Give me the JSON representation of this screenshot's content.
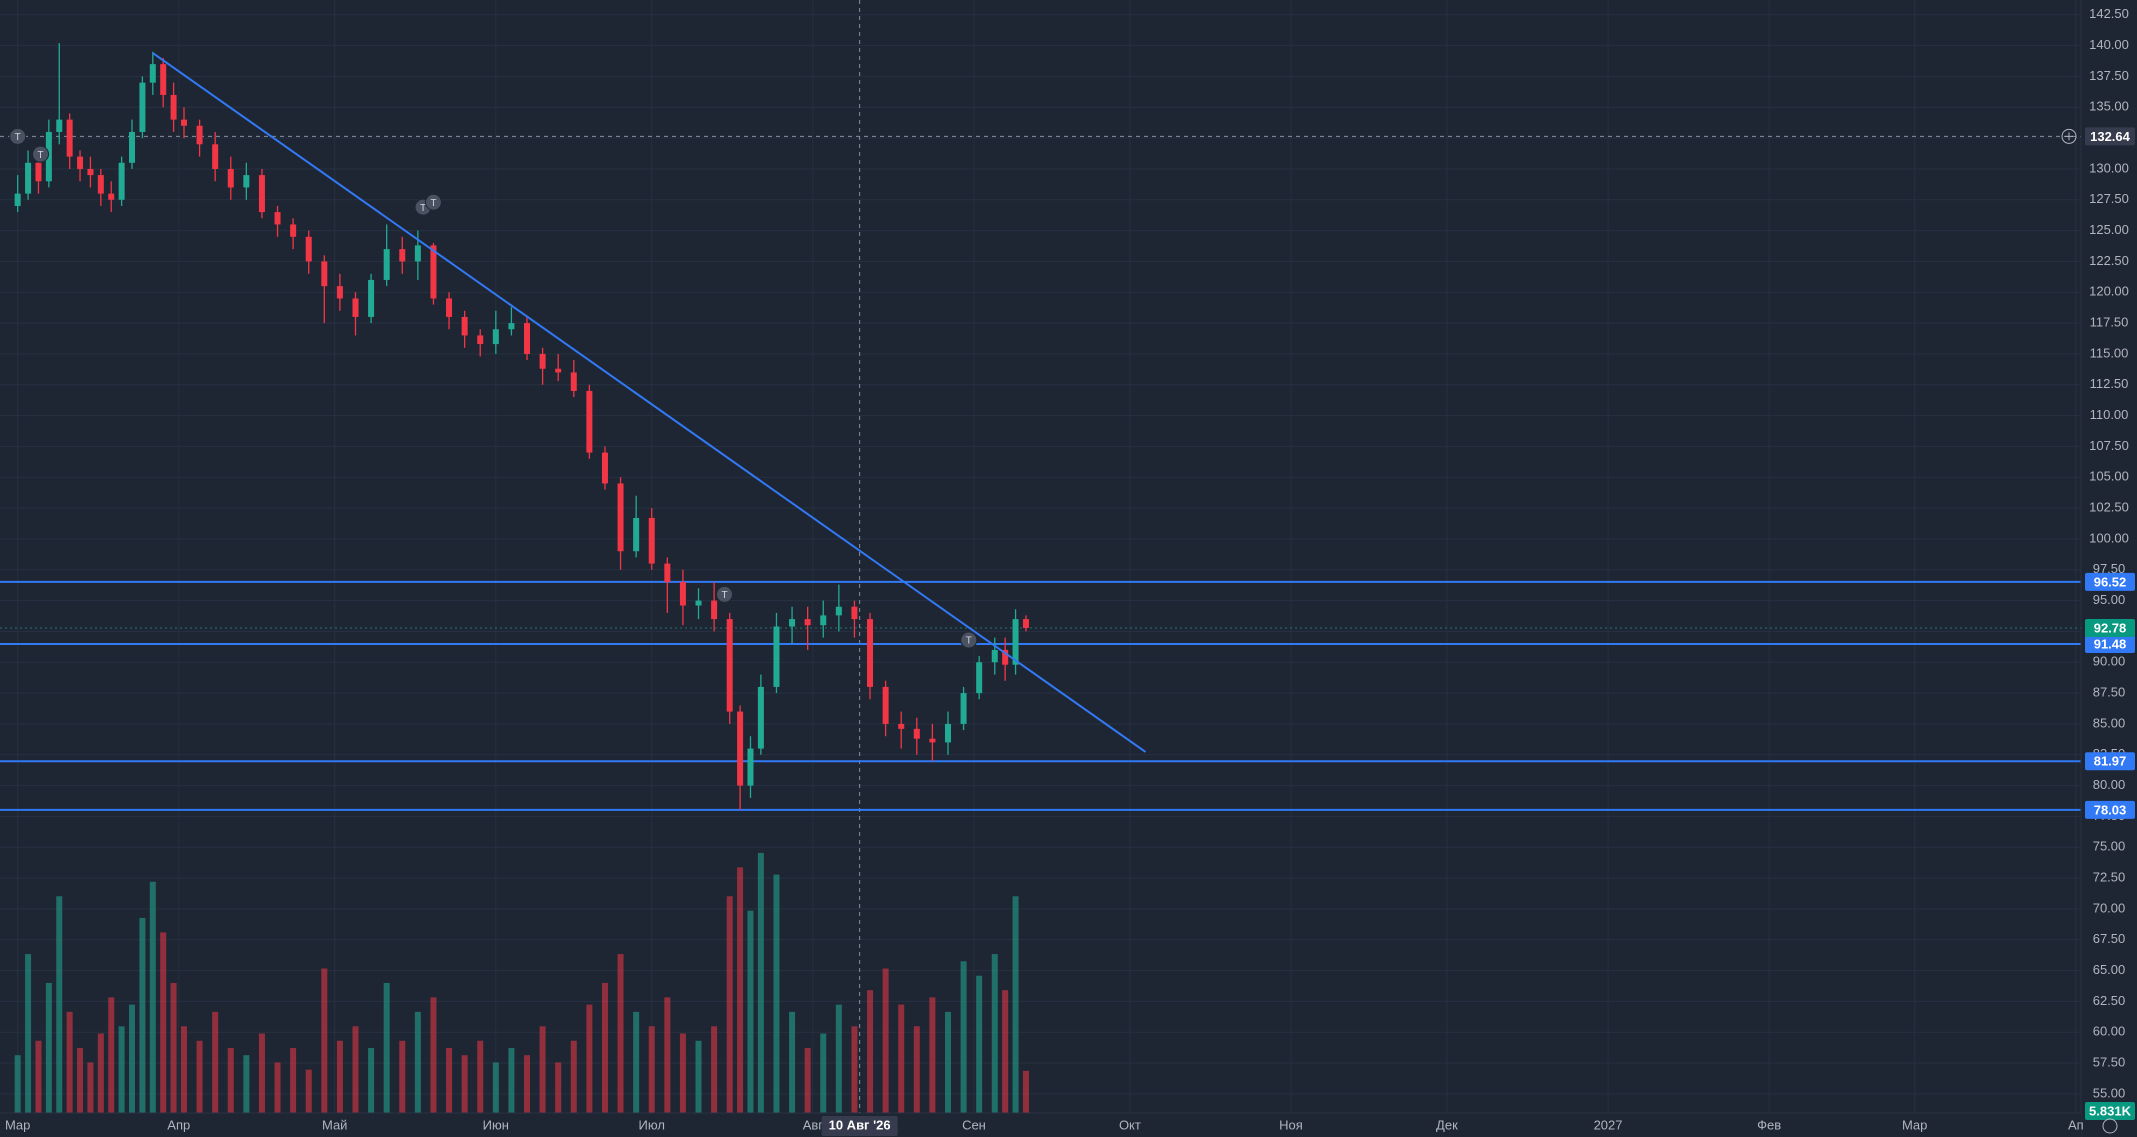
{
  "chart_data": {
    "type": "candlestick",
    "x": [
      0,
      2,
      4,
      6,
      8,
      10,
      12,
      14,
      16,
      18,
      20,
      22,
      24,
      26,
      28,
      30,
      32,
      35,
      38,
      41,
      44,
      47,
      50,
      53,
      56,
      59,
      62,
      65,
      68,
      71,
      74,
      77,
      80,
      83,
      86,
      89,
      92,
      95,
      98,
      101,
      104,
      107,
      110,
      113,
      116,
      119,
      122,
      125,
      128,
      131,
      134,
      137,
      139,
      141,
      143,
      146,
      149,
      152,
      155,
      158,
      161,
      164,
      167,
      170,
      173,
      176,
      179,
      182,
      185,
      188,
      190,
      192,
      194
    ],
    "open": [
      127,
      128,
      130.5,
      129,
      133,
      134,
      131,
      130,
      129.5,
      128,
      127.5,
      130.5,
      133,
      137,
      138.5,
      136,
      134,
      133.5,
      132,
      130,
      128.5,
      129.5,
      126.5,
      125.5,
      124.5,
      122.5,
      120.5,
      119.5,
      118,
      121,
      123.5,
      122.5,
      123.8,
      119.5,
      118,
      116.5,
      115.8,
      117,
      117.5,
      115,
      113.8,
      113.5,
      112,
      107,
      104.5,
      99,
      101.7,
      98,
      96.5,
      94.6,
      95,
      93.5,
      86,
      80,
      83,
      88,
      92.9,
      93.5,
      93,
      93.8,
      94.5,
      93.5,
      88,
      85,
      84.6,
      83.8,
      83.5,
      85,
      87.5,
      90,
      91,
      89.8,
      93.5
    ],
    "high": [
      129.5,
      131.5,
      131,
      134,
      140.2,
      134.5,
      131.5,
      131,
      130,
      129,
      131,
      134,
      137.5,
      139.5,
      139,
      137,
      135,
      134,
      133,
      131,
      130.5,
      130,
      127,
      126,
      125,
      123,
      121.5,
      120,
      121.5,
      125.5,
      124.5,
      125,
      124,
      120,
      118.5,
      117,
      118.5,
      118.8,
      118,
      115.5,
      115,
      114.5,
      112.5,
      107.5,
      105,
      103.5,
      102.5,
      98.5,
      97.5,
      96,
      96.5,
      94,
      86.5,
      84,
      89,
      94,
      94.5,
      94.5,
      95,
      96.3,
      95,
      94,
      88.5,
      86,
      85.5,
      85,
      86,
      88,
      90.5,
      92,
      92,
      94.3,
      93.8
    ],
    "low": [
      126.5,
      127.5,
      128,
      128.5,
      132,
      130,
      129,
      128.5,
      127,
      126.5,
      127,
      130,
      132.5,
      136,
      135,
      133,
      132.5,
      131,
      129,
      127.5,
      127.5,
      126,
      124.5,
      123.5,
      121.5,
      117.5,
      118.5,
      116.5,
      117.5,
      120.5,
      121.5,
      121,
      119,
      117,
      115.5,
      114.8,
      115,
      116.5,
      114.5,
      112.5,
      112.8,
      111.5,
      106.5,
      104,
      97.5,
      98.5,
      97.5,
      94,
      93,
      93.5,
      92.5,
      85,
      78.03,
      79,
      82.5,
      87.5,
      91.5,
      91,
      92,
      92.5,
      92,
      87,
      84,
      83,
      82.5,
      81.97,
      82.5,
      84.5,
      87,
      89,
      88.5,
      89,
      92.5
    ],
    "close": [
      128,
      130.5,
      129,
      133,
      134,
      131,
      130,
      129.5,
      128,
      127.5,
      130.5,
      133,
      137,
      138.5,
      136,
      134,
      133.5,
      132,
      130,
      128.5,
      129.5,
      126.5,
      125.5,
      124.5,
      122.5,
      120.5,
      119.5,
      118,
      121,
      123.5,
      122.5,
      123.8,
      119.5,
      118,
      116.5,
      115.8,
      117,
      117.5,
      115,
      113.8,
      113.5,
      112,
      107,
      104.5,
      99,
      101.7,
      98,
      96.5,
      94.6,
      95,
      93.5,
      86,
      80,
      83,
      88,
      92.9,
      93.5,
      93,
      93.8,
      94.5,
      93.5,
      88,
      85,
      84.6,
      83.8,
      83.5,
      85,
      87.5,
      90,
      91,
      89.8,
      93.5,
      92.78
    ],
    "volume": [
      8,
      22,
      10,
      18,
      30,
      14,
      9,
      7,
      11,
      16,
      12,
      15,
      27,
      32,
      25,
      18,
      12,
      10,
      14,
      9,
      8,
      11,
      7,
      9,
      6,
      20,
      10,
      12,
      9,
      18,
      10,
      14,
      16,
      9,
      8,
      10,
      7,
      9,
      8,
      12,
      7,
      10,
      15,
      18,
      22,
      14,
      12,
      16,
      11,
      10,
      12,
      30,
      34,
      28,
      36,
      33,
      14,
      9,
      11,
      15,
      12,
      17,
      20,
      15,
      12,
      16,
      14,
      21,
      19,
      22,
      17,
      30,
      5.831
    ],
    "volume_label": "5.831K",
    "vlim": [
      0,
      40
    ],
    "up_color": "#22ab94",
    "down_color": "#f23645",
    "xlim": [
      -3.4,
      397
    ],
    "xticks": [
      {
        "value": 0,
        "label": "Мар"
      },
      {
        "value": 31,
        "label": "Апр"
      },
      {
        "value": 61,
        "label": "Май"
      },
      {
        "value": 92,
        "label": "Июн"
      },
      {
        "value": 122,
        "label": "Июл"
      },
      {
        "value": 153,
        "label": "Авг"
      },
      {
        "value": 184,
        "label": "Сен"
      },
      {
        "value": 214,
        "label": "Окт"
      },
      {
        "value": 245,
        "label": "Ноя"
      },
      {
        "value": 275,
        "label": "Дек"
      },
      {
        "value": 306,
        "label": "2027"
      },
      {
        "value": 337,
        "label": "Фев"
      },
      {
        "value": 365,
        "label": "Мар"
      },
      {
        "value": 396,
        "label": "Ап"
      }
    ],
    "ylim": [
      53.45,
      143.7
    ],
    "yticks": [
      {
        "value": 55,
        "label": "55.00"
      },
      {
        "value": 57.5,
        "label": "57.50"
      },
      {
        "value": 60,
        "label": "60.00"
      },
      {
        "value": 62.5,
        "label": "62.50"
      },
      {
        "value": 65,
        "label": "65.00"
      },
      {
        "value": 67.5,
        "label": "67.50"
      },
      {
        "value": 70,
        "label": "70.00"
      },
      {
        "value": 72.5,
        "label": "72.50"
      },
      {
        "value": 75,
        "label": "75.00"
      },
      {
        "value": 77.5,
        "label": "77.50"
      },
      {
        "value": 80,
        "label": "80.00"
      },
      {
        "value": 82.5,
        "label": "82.50"
      },
      {
        "value": 85,
        "label": "85.00"
      },
      {
        "value": 87.5,
        "label": "87.50"
      },
      {
        "value": 90,
        "label": "90.00"
      },
      {
        "value": 92.5,
        "label": "92.50"
      },
      {
        "value": 95,
        "label": "95.00"
      },
      {
        "value": 97.5,
        "label": "97.50"
      },
      {
        "value": 100,
        "label": "100.00"
      },
      {
        "value": 102.5,
        "label": "102.50"
      },
      {
        "value": 105,
        "label": "105.00"
      },
      {
        "value": 107.5,
        "label": "107.50"
      },
      {
        "value": 110,
        "label": "110.00"
      },
      {
        "value": 112.5,
        "label": "112.50"
      },
      {
        "value": 115,
        "label": "115.00"
      },
      {
        "value": 117.5,
        "label": "117.50"
      },
      {
        "value": 120,
        "label": "120.00"
      },
      {
        "value": 122.5,
        "label": "122.50"
      },
      {
        "value": 125,
        "label": "125.00"
      },
      {
        "value": 127.5,
        "label": "127.50"
      },
      {
        "value": 130,
        "label": "130.00"
      },
      {
        "value": 132.5,
        "label": "132.50"
      },
      {
        "value": 135,
        "label": "135.00"
      },
      {
        "value": 137.5,
        "label": "137.50"
      },
      {
        "value": 140,
        "label": "140.00"
      },
      {
        "value": 142.5,
        "label": "142.50"
      }
    ],
    "grid": true,
    "levels": [
      96.52,
      91.48,
      81.97,
      78.03
    ],
    "level_color": "#3179f5",
    "last_price": 92.78,
    "trendline": {
      "x": [
        26,
        217
      ],
      "y": [
        139.4,
        82.73
      ]
    },
    "crosshair": {
      "x": 162,
      "x_label": "10 Авг '26",
      "y": 132.64
    },
    "events": [
      {
        "x": 0,
        "y": 132.64,
        "label": "T"
      },
      {
        "x": 4.4,
        "y": 131.2,
        "label": "T"
      },
      {
        "x": 78,
        "y": 126.9,
        "label": "T"
      },
      {
        "x": 80,
        "y": 127.3,
        "label": "T"
      },
      {
        "x": 136,
        "y": 95.5,
        "label": "T"
      },
      {
        "x": 183,
        "y": 91.8,
        "label": "T"
      }
    ]
  }
}
